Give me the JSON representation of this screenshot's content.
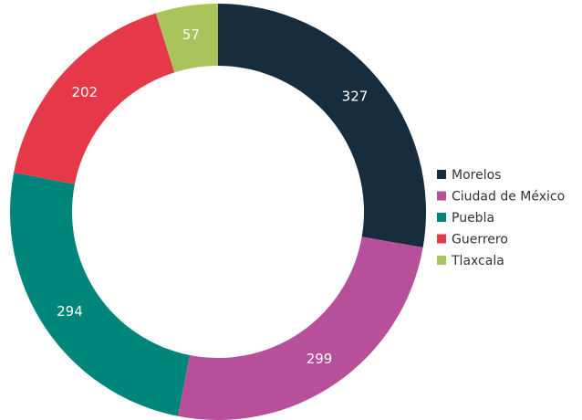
{
  "chart_data": {
    "type": "donut",
    "categories": [
      "Morelos",
      "Ciudad de México",
      "Puebla",
      "Guerrero",
      "Tlaxcala"
    ],
    "values": [
      327,
      299,
      294,
      202,
      57
    ],
    "colors": [
      "#172d3d",
      "#b84f9a",
      "#00857a",
      "#e5394a",
      "#a8c45a"
    ],
    "legend": "right"
  }
}
